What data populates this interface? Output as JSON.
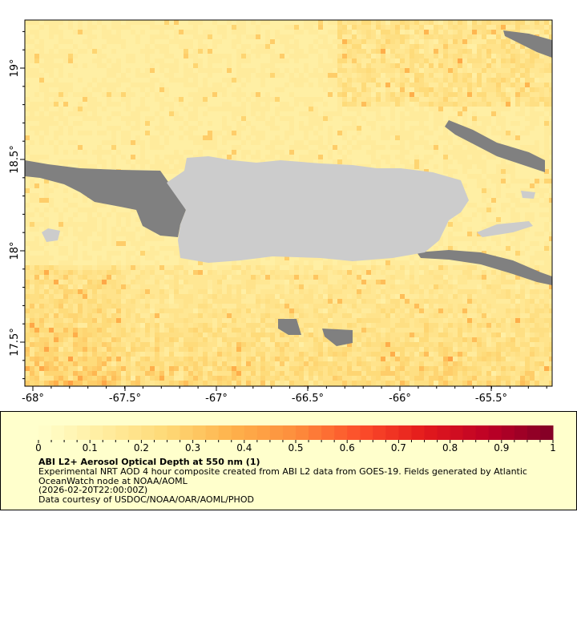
{
  "map": {
    "lon_ticks": [
      "-68°",
      "-67.5°",
      "-67°",
      "-66.5°",
      "-66°",
      "-65.5°"
    ],
    "lat_ticks": [
      "19°",
      "18.5°",
      "18°",
      "17.5°"
    ],
    "lon_range": [
      -68.05,
      -65.18
    ],
    "lat_range": [
      17.24,
      19.24
    ],
    "land_color": "#cccccc",
    "nodata_color": "#808080"
  },
  "legend": {
    "colorbar_ticks": [
      "0",
      "0.1",
      "0.2",
      "0.3",
      "0.4",
      "0.5",
      "0.6",
      "0.7",
      "0.8",
      "0.9",
      "1"
    ],
    "range": [
      0,
      1
    ],
    "colors": [
      "#ffffcc",
      "#ffeda0",
      "#fed976",
      "#feb24c",
      "#fd8d3c",
      "#fc4e2a",
      "#e31a1c",
      "#bd0026",
      "#800026"
    ],
    "title": "ABI L2+ Aerosol Optical Depth at 550 nm (1)",
    "line1": "Experimental NRT AOD 4 hour composite created from ABI L2 data from GOES-19. Fields generated by Atlantic",
    "line2": "OceanWatch node at NOAA/AOML",
    "line3": "(2026-02-20T22:00:00Z)",
    "line4": "Data courtesy of USDOC/NOAA/OAR/AOML/PHOD"
  }
}
